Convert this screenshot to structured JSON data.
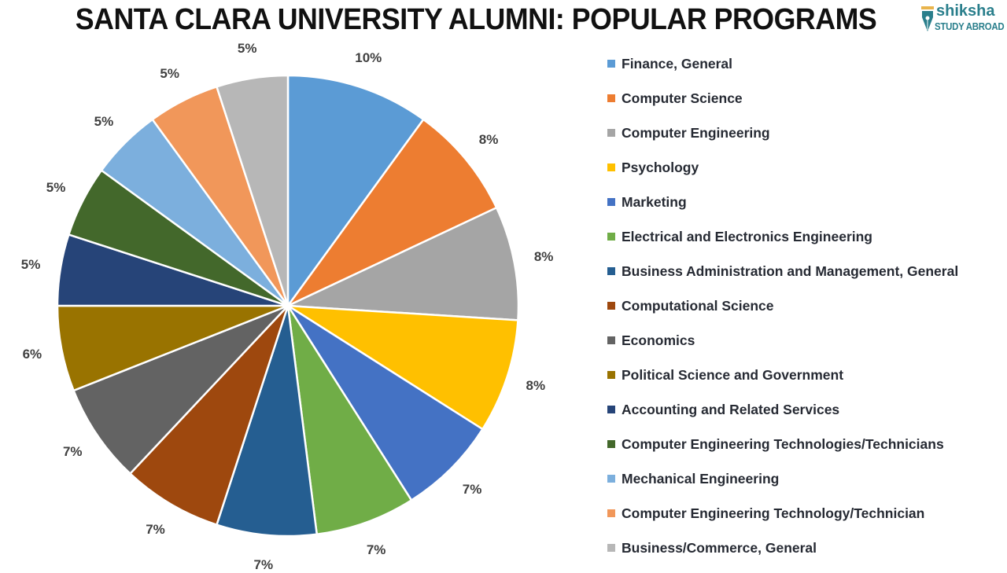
{
  "header": {
    "title": "SANTA CLARA UNIVERSITY ALUMNI: POPULAR PROGRAMS",
    "logo": {
      "brand": "shiksha",
      "tagline": "STUDY ABROAD",
      "icon": "pen-nib-icon",
      "color": "#2a7f8c"
    }
  },
  "chart_data": {
    "type": "pie",
    "title": "SANTA CLARA UNIVERSITY ALUMNI: POPULAR PROGRAMS",
    "start_angle": "12 o'clock",
    "direction": "clockwise",
    "legend_position": "right",
    "categories": [
      "Finance, General",
      "Computer Science",
      "Computer Engineering",
      "Psychology",
      "Marketing",
      "Electrical and Electronics Engineering",
      "Business Administration and Management, General",
      "Computational Science",
      "Economics",
      "Political Science and Government",
      "Accounting and Related Services",
      "Computer Engineering Technologies/Technicians",
      "Mechanical Engineering",
      "Computer Engineering Technology/Technician",
      "Business/Commerce, General"
    ],
    "values": [
      10,
      8,
      8,
      8,
      7,
      7,
      7,
      7,
      7,
      6,
      5,
      5,
      5,
      5,
      5
    ],
    "labels": [
      "10%",
      "8%",
      "8%",
      "8%",
      "7%",
      "7%",
      "7%",
      "7%",
      "7%",
      "6%",
      "5%",
      "5%",
      "5%",
      "5%",
      "5%"
    ],
    "colors": [
      "#5b9bd5",
      "#ed7d31",
      "#a5a5a5",
      "#ffc000",
      "#4472c4",
      "#70ad47",
      "#255e91",
      "#9e480e",
      "#636363",
      "#997300",
      "#264478",
      "#43682b",
      "#7cafdd",
      "#f1975a",
      "#b7b7b7"
    ]
  }
}
